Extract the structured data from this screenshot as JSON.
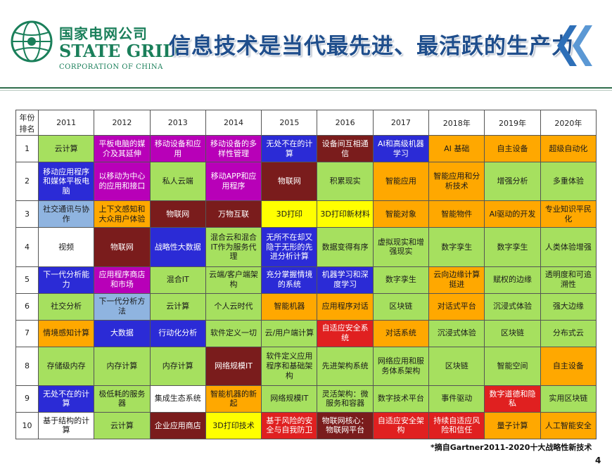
{
  "logo": {
    "cn": "国家电网公司",
    "en": "STATE GRID",
    "corp": "CORPORATION OF CHINA"
  },
  "title": "信息技术是当代最先进、最活跃的生产力",
  "table": {
    "corner": "年份\n排名",
    "years": [
      "2011",
      "2012",
      "2013",
      "2014",
      "2015",
      "2016",
      "2017",
      "2018年",
      "2019年",
      "2020年"
    ],
    "rows": [
      {
        "rank": "1",
        "cells": [
          {
            "t": "云计算",
            "c": "#a6e05f"
          },
          {
            "t": "平板电脑的媒介及其延伸",
            "c": "#b800b8"
          },
          {
            "t": "移动设备和应用",
            "c": "#b800b8"
          },
          {
            "t": "移动设备的多样性管理",
            "c": "#b800b8"
          },
          {
            "t": "无处不在的计算",
            "c": "#2b2bd6"
          },
          {
            "t": "设备间互相通信",
            "c": "#7a1c1c"
          },
          {
            "t": "AI和高级机器学习",
            "c": "#2b2bd6"
          },
          {
            "t": "AI 基础",
            "c": "#ffa800"
          },
          {
            "t": "自主设备",
            "c": "#ffa800"
          },
          {
            "t": "超级自动化",
            "c": "#ffa800"
          }
        ]
      },
      {
        "rank": "2",
        "cells": [
          {
            "t": "移动应用程序和媒体平板电脑",
            "c": "#2b2bd6"
          },
          {
            "t": "以移动为中心的应用和接口",
            "c": "#b800b8"
          },
          {
            "t": "私人云端",
            "c": "#a6e05f"
          },
          {
            "t": "移动APP和应用程序",
            "c": "#b800b8"
          },
          {
            "t": "物联网",
            "c": "#7a1c1c"
          },
          {
            "t": "积累现实",
            "c": "#a6e05f"
          },
          {
            "t": "智能应用",
            "c": "#ffa800"
          },
          {
            "t": "智能应用和分析技术",
            "c": "#ffa800"
          },
          {
            "t": "增强分析",
            "c": "#a6e05f"
          },
          {
            "t": "多重体验",
            "c": "#a6e05f"
          }
        ]
      },
      {
        "rank": "3",
        "cells": [
          {
            "t": "社交通讯与协作",
            "c": "#8fb4e0"
          },
          {
            "t": "上下文感知和大众用户体验",
            "c": "#ffa800"
          },
          {
            "t": "物联网",
            "c": "#7a1c1c"
          },
          {
            "t": "万物互联",
            "c": "#7a1c1c"
          },
          {
            "t": "3D打印",
            "c": "#ffff00"
          },
          {
            "t": "3D打印新材料",
            "c": "#ffff00"
          },
          {
            "t": "智能对象",
            "c": "#ffa800"
          },
          {
            "t": "智能物件",
            "c": "#ffa800"
          },
          {
            "t": "AI驱动的开发",
            "c": "#ffa800"
          },
          {
            "t": "专业知识平民化",
            "c": "#ffa800"
          }
        ]
      },
      {
        "rank": "4",
        "cells": [
          {
            "t": "视频",
            "c": "#ffffff"
          },
          {
            "t": "物联网",
            "c": "#7a1c1c"
          },
          {
            "t": "战略性大数据",
            "c": "#2b2bd6"
          },
          {
            "t": "混合云和混合IT作为服务代理",
            "c": "#a6e05f"
          },
          {
            "t": "无所不在却又隐于无形的先进分析计算",
            "c": "#2b2bd6"
          },
          {
            "t": "数据变得有序",
            "c": "#a6e05f"
          },
          {
            "t": "虚拟现实和增强现实",
            "c": "#a6e05f"
          },
          {
            "t": "数字孪生",
            "c": "#a6e05f"
          },
          {
            "t": "数字孪生",
            "c": "#a6e05f"
          },
          {
            "t": "人类体验增强",
            "c": "#a6e05f"
          }
        ]
      },
      {
        "rank": "5",
        "cells": [
          {
            "t": "下一代分析能力",
            "c": "#2b2bd6"
          },
          {
            "t": "应用程序商店和市场",
            "c": "#b800b8"
          },
          {
            "t": "混合IT",
            "c": "#a6e05f"
          },
          {
            "t": "云端/客户端架构",
            "c": "#a6e05f"
          },
          {
            "t": "充分掌握情境的系统",
            "c": "#2b2bd6"
          },
          {
            "t": "机器学习和深度学习",
            "c": "#2b2bd6"
          },
          {
            "t": "数字孪生",
            "c": "#a6e05f"
          },
          {
            "t": "云向边缘计算挺进",
            "c": "#ffa800"
          },
          {
            "t": "赋权的边缘",
            "c": "#a6e05f"
          },
          {
            "t": "透明度和可追溯性",
            "c": "#a6e05f"
          }
        ]
      },
      {
        "rank": "6",
        "cells": [
          {
            "t": "社交分析",
            "c": "#a6e05f"
          },
          {
            "t": "下一代分析方法",
            "c": "#8fb4e0"
          },
          {
            "t": "云计算",
            "c": "#a6e05f"
          },
          {
            "t": "个人云时代",
            "c": "#a6e05f"
          },
          {
            "t": "智能机器",
            "c": "#ffa800"
          },
          {
            "t": "应用程序对话",
            "c": "#ffa800"
          },
          {
            "t": "区块链",
            "c": "#a6e05f"
          },
          {
            "t": "对话式平台",
            "c": "#ffa800"
          },
          {
            "t": "沉浸式体验",
            "c": "#a6e05f"
          },
          {
            "t": "强大边缘",
            "c": "#a6e05f"
          }
        ]
      },
      {
        "rank": "7",
        "cells": [
          {
            "t": "情境感知计算",
            "c": "#ffa800"
          },
          {
            "t": "大数据",
            "c": "#2b2bd6"
          },
          {
            "t": "行动化分析",
            "c": "#2b2bd6"
          },
          {
            "t": "软件定义一切",
            "c": "#a6e05f"
          },
          {
            "t": "云/用户端计算",
            "c": "#a6e05f"
          },
          {
            "t": "自适应安全系统",
            "c": "#e02020"
          },
          {
            "t": "对话系统",
            "c": "#ffa800"
          },
          {
            "t": "沉浸式体验",
            "c": "#a6e05f"
          },
          {
            "t": "区块链",
            "c": "#a6e05f"
          },
          {
            "t": "分布式云",
            "c": "#a6e05f"
          }
        ]
      },
      {
        "rank": "8",
        "cells": [
          {
            "t": "存储级内存",
            "c": "#a6e05f"
          },
          {
            "t": "内存计算",
            "c": "#a6e05f"
          },
          {
            "t": "内存计算",
            "c": "#a6e05f"
          },
          {
            "t": "网络规模IT",
            "c": "#7a1c1c"
          },
          {
            "t": "软件定义应用程序和基础架构",
            "c": "#a6e05f"
          },
          {
            "t": "先进架构系统",
            "c": "#a6e05f"
          },
          {
            "t": "网络应用和服务体系架构",
            "c": "#a6e05f"
          },
          {
            "t": "区块链",
            "c": "#a6e05f"
          },
          {
            "t": "智能空间",
            "c": "#a6e05f"
          },
          {
            "t": "自主设备",
            "c": "#ffa800"
          }
        ]
      },
      {
        "rank": "9",
        "cells": [
          {
            "t": "无处不在的计算",
            "c": "#2b2bd6"
          },
          {
            "t": "极低耗的服务器",
            "c": "#a6e05f"
          },
          {
            "t": "集成生态系统",
            "c": "#ffffff"
          },
          {
            "t": "智能机器的新起",
            "c": "#ffa800"
          },
          {
            "t": "网络规模IT",
            "c": "#a6e05f"
          },
          {
            "t": "灵活架构：微服务和容器",
            "c": "#a6e05f"
          },
          {
            "t": "数字技术平台",
            "c": "#a6e05f"
          },
          {
            "t": "事件驱动",
            "c": "#a6e05f"
          },
          {
            "t": "数字道德和隐私",
            "c": "#e02020"
          },
          {
            "t": "实用区块链",
            "c": "#a6e05f"
          }
        ]
      },
      {
        "rank": "10",
        "cells": [
          {
            "t": "基于结构的计算",
            "c": "#ffffff"
          },
          {
            "t": "云计算",
            "c": "#a6e05f"
          },
          {
            "t": "企业应用商店",
            "c": "#7a1c1c"
          },
          {
            "t": "3D打印技术",
            "c": "#ffff00"
          },
          {
            "t": "基于风险的安全与自我防卫",
            "c": "#e02020"
          },
          {
            "t": "物联网核心：物联网平台",
            "c": "#7a1c1c"
          },
          {
            "t": "自适应安全架构",
            "c": "#e02020"
          },
          {
            "t": "持续自适应风险和信任",
            "c": "#e02020"
          },
          {
            "t": "量子计算",
            "c": "#ffa800"
          },
          {
            "t": "人工智能安全",
            "c": "#ffa800"
          }
        ]
      }
    ]
  },
  "note": "*摘自Gartner2011-2020十大战略性新技术",
  "page_number": "4"
}
